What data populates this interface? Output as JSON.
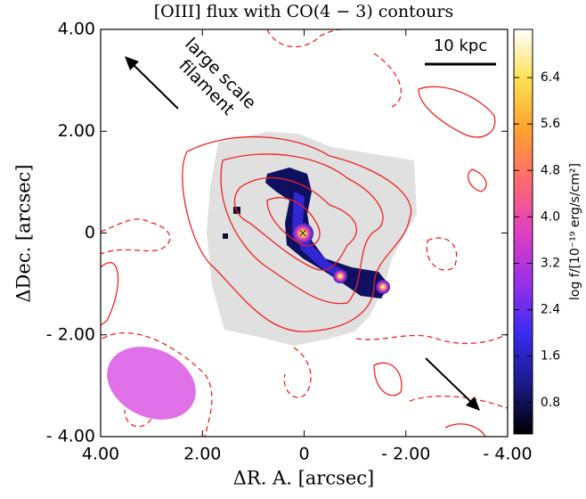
{
  "chart_data": {
    "type": "image",
    "title": "[OIII] flux with CO(4 − 3) contours",
    "xlabel": "ΔR. A. [arcsec]",
    "ylabel": "ΔDec. [arcsec]",
    "xlim": [
      4,
      -4
    ],
    "ylim": [
      -4,
      4
    ],
    "xticks": [
      {
        "value": 4,
        "label": "4.00"
      },
      {
        "value": 2,
        "label": "2.00"
      },
      0,
      {
        "value": -2,
        "label": "- 2.00"
      },
      {
        "value": -4,
        "label": "- 4.00"
      }
    ],
    "yticks": [
      {
        "value": 4,
        "label": "4.00"
      },
      {
        "value": 2,
        "label": "2.00"
      },
      0,
      {
        "value": -2,
        "label": "- 2.00"
      },
      {
        "value": -4,
        "label": "- 4.00"
      }
    ],
    "colorbar": {
      "label": "log f/[10⁻¹⁹ erg/s/cm²]",
      "clim": [
        0.26,
        7.23
      ],
      "ticks": [
        0.8,
        1.6,
        2.4,
        3.2,
        {
          "value": 4,
          "label": "4.0"
        },
        4.8,
        5.6,
        6.4
      ],
      "colormap": [
        "#000000",
        "#1a1a8a",
        "#3a2cf0",
        "#9a30e8",
        "#e040c0",
        "#ff6a70",
        "#ffa030",
        "#ffe050",
        "#ffffff"
      ]
    },
    "annotations": [
      "large scale",
      "filament",
      "10 kpc"
    ],
    "contour_color": "#ee2222"
  }
}
